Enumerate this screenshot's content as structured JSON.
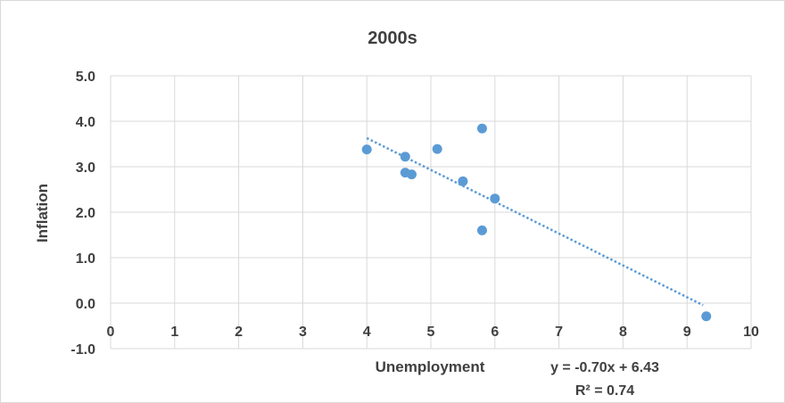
{
  "chart_data": {
    "type": "scatter",
    "title": "2000s",
    "xlabel": "Unemployment",
    "ylabel": "Inflation",
    "xlim": [
      0,
      10
    ],
    "ylim": [
      -1.0,
      5.0
    ],
    "x_ticks": [
      "0",
      "1",
      "2",
      "3",
      "4",
      "5",
      "6",
      "7",
      "8",
      "9",
      "10"
    ],
    "y_ticks": [
      "5.0",
      "4.0",
      "3.0",
      "2.0",
      "1.0",
      "0.0",
      "-1.0"
    ],
    "grid": true,
    "series": [
      {
        "points": [
          {
            "x": 4.0,
            "y": 3.38
          },
          {
            "x": 4.6,
            "y": 3.22
          },
          {
            "x": 4.6,
            "y": 2.87
          },
          {
            "x": 4.7,
            "y": 2.83
          },
          {
            "x": 5.1,
            "y": 3.39
          },
          {
            "x": 5.5,
            "y": 2.68
          },
          {
            "x": 5.8,
            "y": 3.84
          },
          {
            "x": 5.8,
            "y": 1.6
          },
          {
            "x": 6.0,
            "y": 2.3
          },
          {
            "x": 9.3,
            "y": -0.29
          }
        ]
      }
    ],
    "trendline": {
      "slope": -0.7,
      "intercept": 6.43,
      "x_range": [
        4.0,
        9.25
      ],
      "equation": "y = -0.70x + 6.43",
      "r_squared": "R² = 0.74"
    },
    "colors": {
      "points": "#5b9bd5",
      "grid": "#d9d9d9",
      "text": "#404040"
    }
  }
}
